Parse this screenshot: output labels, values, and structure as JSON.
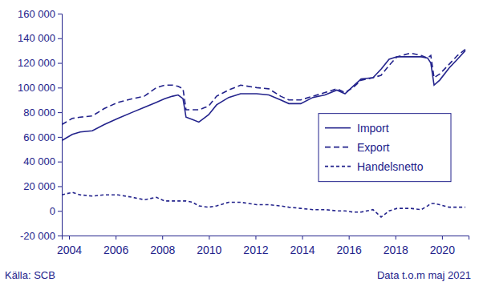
{
  "chart_data": {
    "type": "line",
    "annotations": [
      "Källa: SCB",
      "Data t.o.m maj 2021"
    ],
    "x": [
      2003.69,
      2004.14,
      2004.48,
      2005.0,
      2005.51,
      2006.1,
      2006.72,
      2007.23,
      2007.75,
      2008.1,
      2008.44,
      2008.68,
      2008.89,
      2009.02,
      2009.3,
      2009.57,
      2009.99,
      2010.33,
      2010.85,
      2011.36,
      2012.05,
      2012.57,
      2013.08,
      2013.43,
      2013.94,
      2014.46,
      2014.98,
      2015.49,
      2015.84,
      2016.18,
      2016.53,
      2017.04,
      2017.39,
      2017.73,
      2018.07,
      2018.66,
      2019.11,
      2019.38,
      2019.52,
      2019.66,
      2019.9,
      2020.31,
      2020.66,
      2021.0
    ],
    "series": [
      {
        "name": "Import",
        "color": "#23238c",
        "line_style": "solid",
        "values": [
          57000,
          62000,
          64000,
          65000,
          70000,
          75000,
          80000,
          84000,
          88000,
          91000,
          93000,
          94000,
          91000,
          76000,
          74000,
          72000,
          78000,
          86000,
          92000,
          95000,
          95000,
          94000,
          90000,
          87000,
          87000,
          92000,
          94000,
          98000,
          95000,
          101000,
          107000,
          108000,
          115000,
          123000,
          125000,
          125000,
          125000,
          124000,
          120000,
          102000,
          106000,
          116000,
          123000,
          130000
        ]
      },
      {
        "name": "Export",
        "color": "#23238c",
        "line_style": "dashed",
        "values": [
          70000,
          75000,
          76000,
          77000,
          83000,
          88000,
          91000,
          93000,
          100000,
          102000,
          102000,
          101000,
          99000,
          82000,
          82000,
          82000,
          85000,
          93000,
          98000,
          102000,
          100000,
          99000,
          93000,
          90000,
          90000,
          93000,
          96000,
          99000,
          96000,
          100000,
          106000,
          108000,
          110000,
          118000,
          125000,
          128000,
          126000,
          124000,
          126000,
          108000,
          111000,
          119000,
          126000,
          131000
        ]
      },
      {
        "name": "Handelsnetto",
        "color": "#23238c",
        "line_style": "short-dashed",
        "values": [
          13000,
          15000,
          13000,
          12000,
          13000,
          13000,
          11000,
          9000,
          11000,
          8000,
          8000,
          8000,
          8000,
          8000,
          7000,
          4000,
          3000,
          4000,
          7000,
          7000,
          5000,
          5000,
          4000,
          3000,
          2000,
          1000,
          1000,
          0,
          0,
          -1000,
          -1000,
          1000,
          -5000,
          0,
          2000,
          2000,
          1000,
          4000,
          6000,
          6000,
          5000,
          3000,
          3000,
          3000
        ]
      }
    ],
    "xlim": [
      2003.69,
      2021.14
    ],
    "xticks": [
      2004,
      2006,
      2008,
      2010,
      2012,
      2014,
      2016,
      2018,
      2020
    ],
    "ylim": [
      -20000,
      160000
    ],
    "yticks": [
      {
        "value": -20000,
        "label": "-20 000"
      },
      0,
      {
        "value": 20000,
        "label": "20 000"
      },
      {
        "value": 40000,
        "label": "40 000"
      },
      {
        "value": 60000,
        "label": "60 000"
      },
      {
        "value": 80000,
        "label": "80 000"
      },
      {
        "value": 100000,
        "label": "100 000"
      },
      {
        "value": 120000,
        "label": "120 000"
      },
      {
        "value": 140000,
        "label": "140 000"
      },
      {
        "value": 160000,
        "label": "160 000"
      }
    ],
    "grid": false,
    "legend": "right"
  }
}
